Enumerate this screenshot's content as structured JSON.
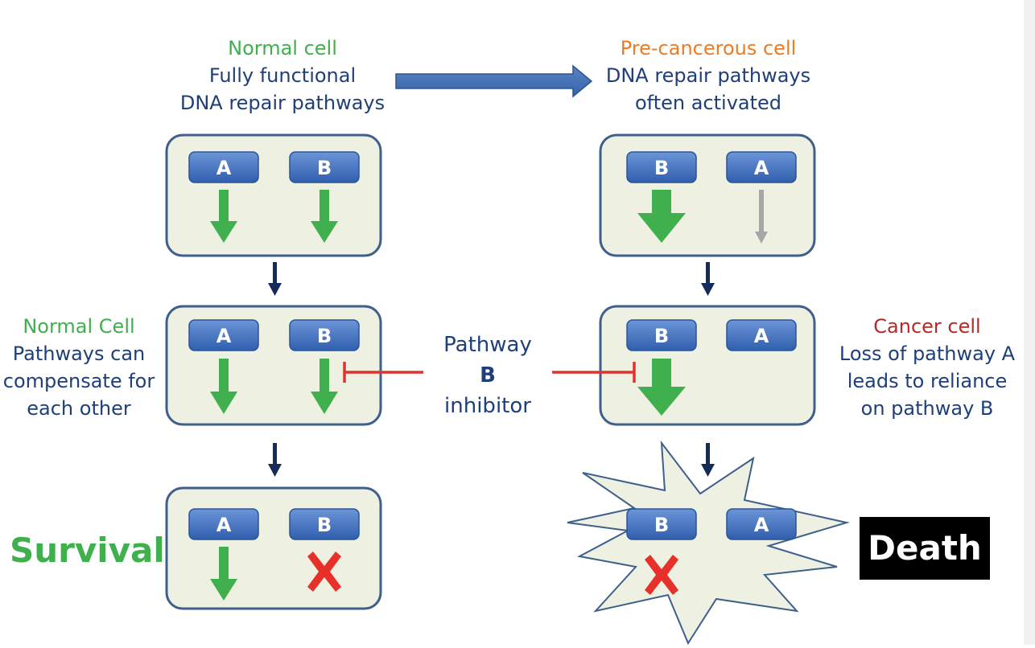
{
  "normal_header": {
    "title": "Normal cell",
    "line1": "Fully functional",
    "line2": "DNA repair pathways"
  },
  "precancer_header": {
    "title": "Pre-cancerous cell",
    "line1": "DNA repair pathways",
    "line2": "often activated"
  },
  "normal_compensate": {
    "title": "Normal Cell",
    "line1": "Pathways can",
    "line2": "compensate for",
    "line3": "each other"
  },
  "cancer_side": {
    "title": "Cancer cell",
    "line1": "Loss of pathway A",
    "line2": "leads to reliance",
    "line3": "on pathway B"
  },
  "inhibitor": {
    "line1": "Pathway",
    "line2": "B",
    "line3": "inhibitor"
  },
  "outcomes": {
    "survival": "Survival",
    "death": "Death"
  },
  "pathway_labels": {
    "a": "A",
    "b": "B"
  },
  "colors": {
    "cell_fill": "#eef0e2",
    "cell_border": "#3f5f8c",
    "pathway_box": "#3d70c2",
    "active_arrow": "#3fb04d",
    "weak_arrow": "#a6a6a6",
    "inhibition": "#e0332f",
    "flow_arrow": "#152b5a",
    "label_blue": "#1f3f7a",
    "label_green": "#3fb04d",
    "label_orange": "#ee7b22",
    "label_red": "#b32a27"
  }
}
